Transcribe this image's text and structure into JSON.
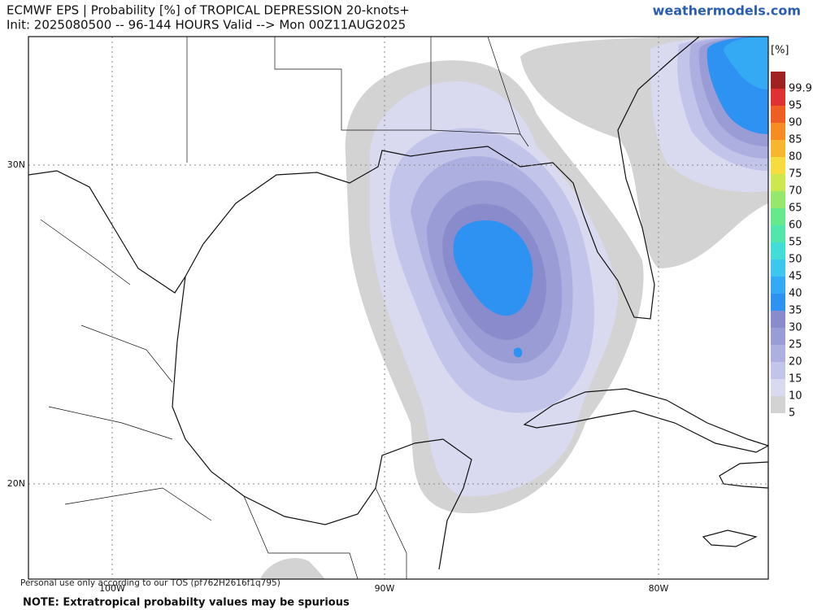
{
  "header": {
    "title": "ECMWF EPS | Probability [%] of TROPICAL DEPRESSION 20-knots+",
    "subtitle": "Init: 2025080500 -- 96-144 HOURS Valid --> Mon 00Z11AUG2025",
    "site": "weathermodels.com"
  },
  "colorbar": {
    "unit": "[%]",
    "levels": [
      {
        "value": 5,
        "color": "#d3d3d3"
      },
      {
        "value": 10,
        "color": "#d9d9f0"
      },
      {
        "value": 15,
        "color": "#c3c4e9"
      },
      {
        "value": 20,
        "color": "#adafe0"
      },
      {
        "value": 25,
        "color": "#9a9cd6"
      },
      {
        "value": 30,
        "color": "#8a8bcc"
      },
      {
        "value": 35,
        "color": "#2e92f2"
      },
      {
        "value": 40,
        "color": "#35aaf4"
      },
      {
        "value": 45,
        "color": "#3dc6ee"
      },
      {
        "value": 50,
        "color": "#42ddd6"
      },
      {
        "value": 55,
        "color": "#52e6ad"
      },
      {
        "value": 60,
        "color": "#66e88c"
      },
      {
        "value": 65,
        "color": "#96e86c"
      },
      {
        "value": 70,
        "color": "#cce84e"
      },
      {
        "value": 75,
        "color": "#f7dc3e"
      },
      {
        "value": 80,
        "color": "#f8b62e"
      },
      {
        "value": 85,
        "color": "#f58d22"
      },
      {
        "value": 90,
        "color": "#ee5e22"
      },
      {
        "value": 95,
        "color": "#de3232"
      },
      {
        "value": 99.9,
        "color": "#9e2222"
      }
    ]
  },
  "axes": {
    "lat_labels": [
      "30N",
      "20N"
    ],
    "lon_labels": [
      "100W",
      "90W",
      "80W"
    ]
  },
  "footer": {
    "disclaimer": "Personal use only according to our TOS (pf762H2616f1q795)",
    "note": "NOTE: Extratropical probabilty values may be spurious"
  }
}
